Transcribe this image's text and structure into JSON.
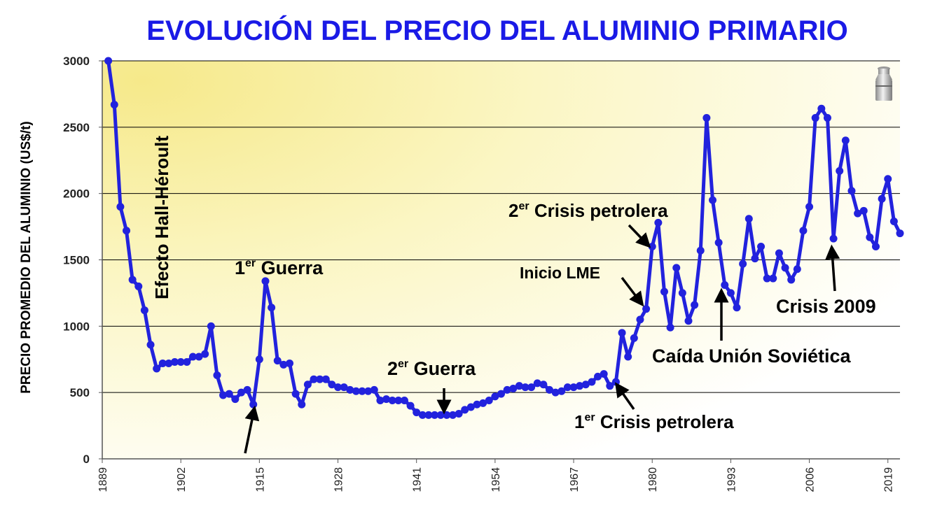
{
  "chart_data": {
    "type": "line",
    "title": "EVOLUCIÓN DEL PRECIO DEL ALUMINIO PRIMARIO",
    "xlabel": "",
    "ylabel": "PRECIO PROMEDIO DEL ALUMINIO (US$/t)",
    "ylim": [
      0,
      3000
    ],
    "xlim": [
      1889,
      2021
    ],
    "yticks": [
      0,
      500,
      1000,
      1500,
      2000,
      2500,
      3000
    ],
    "xticks": [
      1889,
      1902,
      1915,
      1928,
      1941,
      1954,
      1967,
      1980,
      1993,
      2006,
      2019
    ],
    "grid": true,
    "colors": {
      "line": "#2222dd",
      "title": "#1a1ae6"
    },
    "icon": "milk-can-icon",
    "series": [
      {
        "x": [
          1890,
          1891,
          1892,
          1893,
          1894,
          1895,
          1896,
          1897,
          1898,
          1899,
          1900,
          1901,
          1902,
          1903,
          1904,
          1905,
          1906,
          1907,
          1908,
          1909,
          1910,
          1911,
          1912,
          1913,
          1914,
          1915,
          1916,
          1917,
          1918,
          1919,
          1920,
          1921,
          1922,
          1923,
          1924,
          1925,
          1926,
          1927,
          1928,
          1929,
          1930,
          1931,
          1932,
          1933,
          1934,
          1935,
          1936,
          1937,
          1938,
          1939,
          1940,
          1941,
          1942,
          1943,
          1944,
          1945,
          1946,
          1947,
          1948,
          1949,
          1950,
          1951,
          1952,
          1953,
          1954,
          1955,
          1956,
          1957,
          1958,
          1959,
          1960,
          1961,
          1962,
          1963,
          1964,
          1965,
          1966,
          1967,
          1968,
          1969,
          1970,
          1971,
          1972,
          1973,
          1974,
          1975,
          1976,
          1977,
          1978,
          1979,
          1980,
          1981,
          1982,
          1983,
          1984,
          1985,
          1986,
          1987,
          1988,
          1989,
          1990,
          1991,
          1992,
          1993,
          1994,
          1995,
          1996,
          1997,
          1998,
          1999,
          2000,
          2001,
          2002,
          2003,
          2004,
          2005,
          2006,
          2007,
          2008,
          2009,
          2010,
          2011,
          2012,
          2013,
          2014,
          2015,
          2016,
          2017,
          2018,
          2019,
          2020,
          2021
        ],
        "values": [
          3000,
          2670,
          1900,
          1720,
          1350,
          1300,
          1120,
          860,
          680,
          720,
          720,
          730,
          730,
          730,
          770,
          770,
          790,
          1000,
          630,
          480,
          490,
          450,
          500,
          520,
          410,
          750,
          1340,
          1140,
          740,
          710,
          720,
          490,
          410,
          560,
          600,
          600,
          600,
          560,
          540,
          540,
          520,
          510,
          510,
          510,
          520,
          440,
          450,
          440,
          440,
          440,
          400,
          350,
          330,
          330,
          330,
          330,
          330,
          330,
          340,
          370,
          390,
          410,
          420,
          440,
          470,
          490,
          520,
          530,
          550,
          540,
          540,
          570,
          560,
          520,
          500,
          510,
          540,
          540,
          550,
          560,
          580,
          620,
          640,
          550,
          580,
          950,
          770,
          910,
          1050,
          1130,
          1600,
          1780,
          1260,
          990,
          1440,
          1250,
          1040,
          1160,
          1570,
          2570,
          1950,
          1630,
          1310,
          1250,
          1140,
          1470,
          1810,
          1510,
          1600,
          1360,
          1360,
          1550,
          1440,
          1350,
          1430,
          1720,
          1900,
          2570,
          2640,
          2570,
          1660,
          2170,
          2400,
          2020,
          1850,
          1870,
          1670,
          1600,
          1960,
          2110,
          1790,
          1700
        ]
      }
    ],
    "annotations": [
      {
        "text": "Efecto Hall-Héroult"
      },
      {
        "base": "1",
        "sup": "er",
        "text": " Guerra"
      },
      {
        "base": "2",
        "sup": "er",
        "text": " Guerra"
      },
      {
        "base": "1",
        "sup": "er",
        "text": " Crisis petrolera"
      },
      {
        "base": "2",
        "sup": "er",
        "text": " Crisis petrolera"
      },
      {
        "text": "Inicio LME"
      },
      {
        "text": "Caída Unión Soviética"
      },
      {
        "text": "Crisis 2009"
      }
    ]
  }
}
